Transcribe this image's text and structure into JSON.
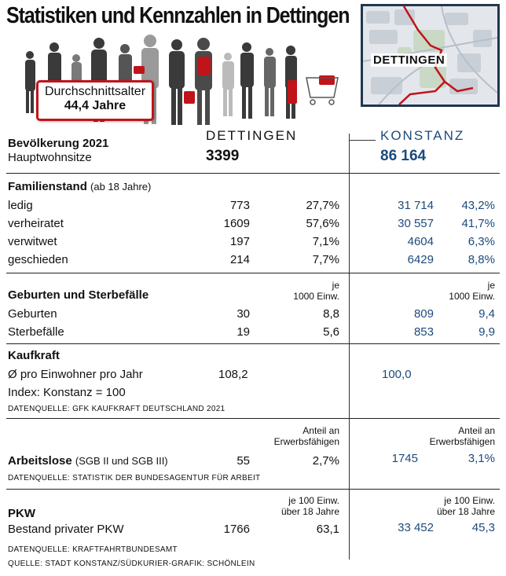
{
  "title": "Statistiken und Kennzahlen in Dettingen",
  "age_box": {
    "line1": "Durchschnittsalter",
    "line2": "44,4 Jahre"
  },
  "map": {
    "label": "DETTINGEN"
  },
  "columns": {
    "dettingen": "DETTINGEN",
    "konstanz": "KONSTANZ"
  },
  "population": {
    "label": "Bevölkerung 2021",
    "sub": "Hauptwohnsitze",
    "dettingen": "3399",
    "konstanz": "86 164"
  },
  "familienstand": {
    "label": "Familienstand",
    "note": "(ab 18 Jahre)",
    "rows": [
      {
        "label": "ledig",
        "d_abs": "773",
        "d_pct": "27,7%",
        "k_abs": "31 714",
        "k_pct": "43,2%"
      },
      {
        "label": "verheiratet",
        "d_abs": "1609",
        "d_pct": "57,6%",
        "k_abs": "30 557",
        "k_pct": "41,7%"
      },
      {
        "label": "verwitwet",
        "d_abs": "197",
        "d_pct": "7,1%",
        "k_abs": "4604",
        "k_pct": "6,3%"
      },
      {
        "label": "geschieden",
        "d_abs": "214",
        "d_pct": "7,7%",
        "k_abs": "6429",
        "k_pct": "8,8%"
      }
    ]
  },
  "geburten": {
    "label": "Geburten und Sterbefälle",
    "unit_line1": "je",
    "unit_line2": "1000 Einw.",
    "rows": [
      {
        "label": "Geburten",
        "d_abs": "30",
        "d_rate": "8,8",
        "k_abs": "809",
        "k_rate": "9,4"
      },
      {
        "label": "Sterbefälle",
        "d_abs": "19",
        "d_rate": "5,6",
        "k_abs": "853",
        "k_rate": "9,9"
      }
    ]
  },
  "kaufkraft": {
    "label": "Kaufkraft",
    "row1": "Ø pro Einwohner pro Jahr",
    "row2": "Index: Konstanz = 100",
    "dettingen": "108,2",
    "konstanz": "100,0",
    "source": "DATENQUELLE: GFK KAUFKRAFT DEUTSCHLAND 2021"
  },
  "arbeitslose": {
    "label": "Arbeitslose",
    "note": "(SGB II und SGB III)",
    "unit_line1": "Anteil an",
    "unit_line2": "Erwerbsfähigen",
    "d_abs": "55",
    "d_pct": "2,7%",
    "k_abs": "1745",
    "k_pct": "3,1%",
    "source": "DATENQUELLE: STATISTIK DER BUNDESAGENTUR FÜR ARBEIT"
  },
  "pkw": {
    "label": "PKW",
    "row": "Bestand privater PKW",
    "unit_line1": "je 100 Einw.",
    "unit_line2": "über 18 Jahre",
    "d_abs": "1766",
    "d_rate": "63,1",
    "k_abs": "33 452",
    "k_rate": "45,3",
    "source": "DATENQUELLE: KRAFTFAHRTBUNDESAMT"
  },
  "footer": "QUELLE: STADT KONSTANZ/SÜDKURIER-GRAFIK: SCHÖNLEIN",
  "colors": {
    "accent_red": "#c0141a",
    "konstanz_blue": "#1c4a7d",
    "map_frame": "#22364f"
  }
}
